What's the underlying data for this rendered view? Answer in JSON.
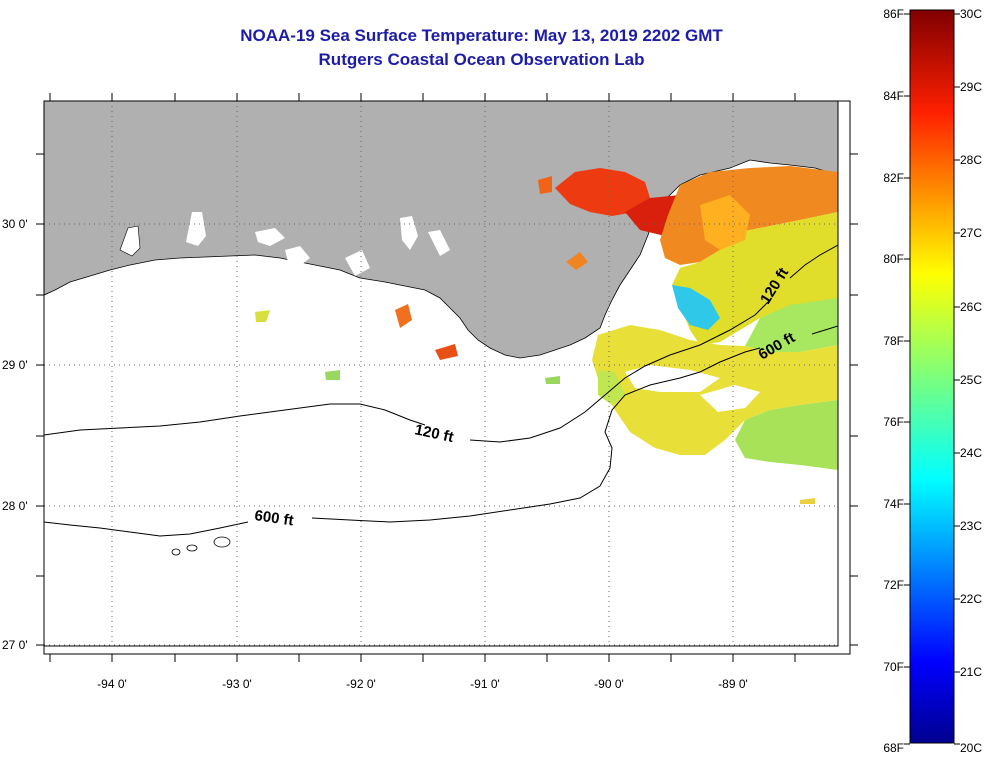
{
  "header": {
    "title": "NOAA-19 Sea Surface Temperature:  May 13, 2019 2202 GMT",
    "subtitle": "Rutgers Coastal Ocean Observation Lab"
  },
  "map": {
    "lat_labels": [
      "30 0'",
      "29 0'",
      "28 0'",
      "27 0'"
    ],
    "lon_labels": [
      "-94 0'",
      "-93 0'",
      "-92 0'",
      "-91 0'",
      "-90 0'",
      "-89 0'"
    ],
    "contour_labels": [
      "120 ft",
      "600 ft",
      "120 ft",
      "600 ft"
    ]
  },
  "colorbar": {
    "f_labels": [
      "86F",
      "84F",
      "82F",
      "80F",
      "78F",
      "76F",
      "74F",
      "72F",
      "70F",
      "68F"
    ],
    "c_labels": [
      "30C",
      "29C",
      "28C",
      "27C",
      "26C",
      "25C",
      "24C",
      "23C",
      "22C",
      "21C",
      "20C"
    ]
  },
  "colors": {
    "land": "#b0b0b0",
    "title": "#1c1ca8"
  }
}
